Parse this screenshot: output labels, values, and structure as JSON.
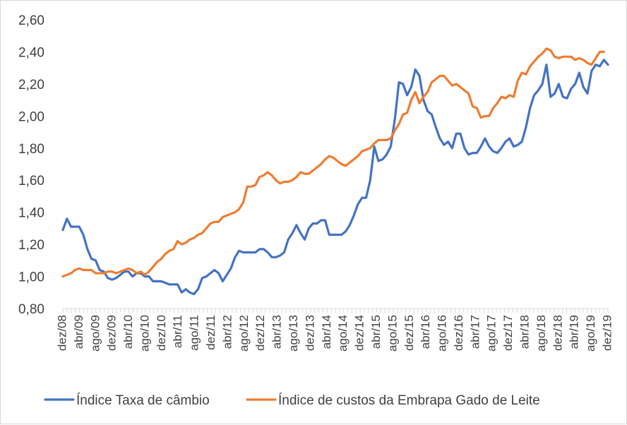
{
  "chart_data": {
    "type": "line",
    "title": "",
    "xlabel": "",
    "ylabel": "",
    "ylim": [
      0.8,
      2.6
    ],
    "y_ticks": [
      "0,80",
      "1,00",
      "1,20",
      "1,40",
      "1,60",
      "1,80",
      "2,00",
      "2,20",
      "2,40",
      "2,60"
    ],
    "x_tick_labels": [
      "dez/08",
      "abr/09",
      "ago/09",
      "dez/09",
      "abr/10",
      "ago/10",
      "dez/10",
      "abr/11",
      "ago/11",
      "dez/11",
      "abr/12",
      "ago/12",
      "dez/12",
      "abr/13",
      "ago/13",
      "dez/13",
      "abr/14",
      "ago/14",
      "dez/14",
      "abr/15",
      "ago/15",
      "dez/15",
      "abr/16",
      "ago/16",
      "dez/16",
      "abr/17",
      "ago/17",
      "dez/17",
      "abr/18",
      "ago/18",
      "dez/18",
      "abr/19",
      "ago/19",
      "dez/19"
    ],
    "x_start": "dez/08",
    "x_end": "dez/19",
    "grid": false,
    "legend_position": "bottom",
    "series": [
      {
        "name": "Índice Taxa de câmbio",
        "color": "#4472C4",
        "values": [
          1.29,
          1.36,
          1.31,
          1.31,
          1.31,
          1.26,
          1.17,
          1.11,
          1.1,
          1.04,
          1.03,
          0.99,
          0.98,
          0.99,
          1.01,
          1.03,
          1.03,
          1.0,
          1.02,
          1.02,
          1.0,
          1.0,
          0.97,
          0.97,
          0.97,
          0.96,
          0.95,
          0.95,
          0.95,
          0.9,
          0.92,
          0.9,
          0.89,
          0.92,
          0.99,
          1.0,
          1.02,
          1.04,
          1.02,
          0.97,
          1.01,
          1.05,
          1.12,
          1.16,
          1.15,
          1.15,
          1.15,
          1.15,
          1.17,
          1.17,
          1.15,
          1.12,
          1.12,
          1.13,
          1.15,
          1.23,
          1.27,
          1.32,
          1.27,
          1.23,
          1.3,
          1.33,
          1.33,
          1.35,
          1.35,
          1.26,
          1.26,
          1.26,
          1.26,
          1.28,
          1.32,
          1.38,
          1.45,
          1.49,
          1.49,
          1.6,
          1.81,
          1.72,
          1.73,
          1.76,
          1.81,
          1.98,
          2.21,
          2.2,
          2.13,
          2.18,
          2.29,
          2.25,
          2.1,
          2.03,
          2.01,
          1.93,
          1.86,
          1.82,
          1.84,
          1.8,
          1.89,
          1.89,
          1.8,
          1.76,
          1.77,
          1.77,
          1.81,
          1.86,
          1.81,
          1.78,
          1.77,
          1.8,
          1.84,
          1.86,
          1.81,
          1.82,
          1.84,
          1.93,
          2.05,
          2.13,
          2.16,
          2.2,
          2.32,
          2.12,
          2.14,
          2.2,
          2.12,
          2.11,
          2.17,
          2.2,
          2.27,
          2.18,
          2.14,
          2.28,
          2.32,
          2.31,
          2.35,
          2.32
        ]
      },
      {
        "name": "Índice de custos da Embrapa Gado de Leite",
        "color": "#ED7D31",
        "values": [
          1.0,
          1.01,
          1.02,
          1.04,
          1.05,
          1.04,
          1.04,
          1.04,
          1.02,
          1.02,
          1.02,
          1.03,
          1.03,
          1.02,
          1.03,
          1.04,
          1.05,
          1.04,
          1.02,
          1.03,
          1.01,
          1.03,
          1.06,
          1.09,
          1.11,
          1.14,
          1.16,
          1.17,
          1.22,
          1.2,
          1.21,
          1.23,
          1.24,
          1.26,
          1.27,
          1.3,
          1.33,
          1.34,
          1.34,
          1.37,
          1.38,
          1.39,
          1.4,
          1.42,
          1.46,
          1.56,
          1.56,
          1.57,
          1.62,
          1.63,
          1.65,
          1.63,
          1.6,
          1.58,
          1.59,
          1.59,
          1.6,
          1.62,
          1.65,
          1.64,
          1.64,
          1.66,
          1.68,
          1.7,
          1.73,
          1.75,
          1.74,
          1.72,
          1.7,
          1.69,
          1.71,
          1.73,
          1.75,
          1.78,
          1.79,
          1.8,
          1.83,
          1.85,
          1.85,
          1.85,
          1.86,
          1.91,
          1.95,
          2.01,
          2.02,
          2.1,
          2.15,
          2.08,
          2.12,
          2.15,
          2.21,
          2.23,
          2.25,
          2.25,
          2.22,
          2.19,
          2.2,
          2.18,
          2.16,
          2.14,
          2.06,
          2.05,
          1.99,
          2.0,
          2.0,
          2.05,
          2.08,
          2.12,
          2.11,
          2.13,
          2.12,
          2.22,
          2.27,
          2.26,
          2.31,
          2.34,
          2.37,
          2.39,
          2.42,
          2.41,
          2.37,
          2.36,
          2.37,
          2.37,
          2.37,
          2.35,
          2.36,
          2.35,
          2.33,
          2.32,
          2.36,
          2.4,
          2.4
        ]
      }
    ]
  }
}
